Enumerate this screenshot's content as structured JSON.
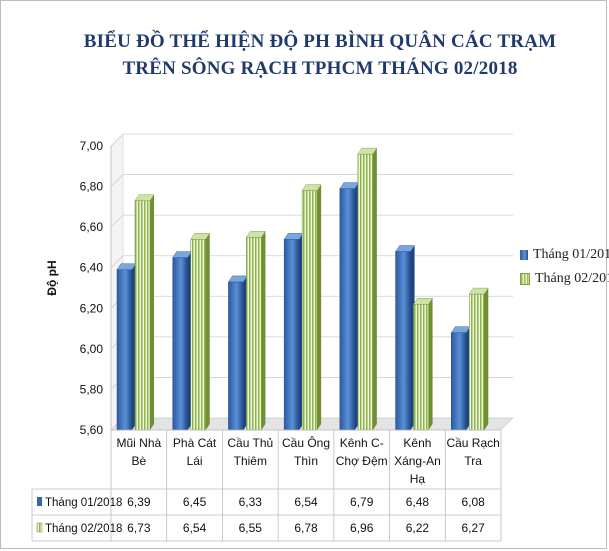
{
  "chart_data": {
    "type": "bar",
    "title_lines": [
      "BIỂU ĐỒ THỂ HIỆN ĐỘ PH BÌNH QUÂN CÁC TRẠM",
      "TRÊN SÔNG RẠCH TPHCM THÁNG 02/2018"
    ],
    "ylabel": "Độ pH",
    "ylim": [
      5.6,
      7.0
    ],
    "yticks": [
      "5,60",
      "5,80",
      "6,00",
      "6,20",
      "6,40",
      "6,60",
      "6,80",
      "7,00"
    ],
    "categories": [
      [
        "Mũi Nhà",
        "Bè"
      ],
      [
        "Phà Cát",
        "Lái"
      ],
      [
        "Cầu Thủ",
        "Thiêm"
      ],
      [
        "Cầu Ông",
        "Thìn"
      ],
      [
        "Kênh C-",
        "Chợ Đệm"
      ],
      [
        "Kênh",
        "Xáng-An",
        "Hạ"
      ],
      [
        "Cầu Rạch",
        "Tra"
      ]
    ],
    "series": [
      {
        "name": "Tháng 01/2018",
        "values": [
          6.39,
          6.45,
          6.33,
          6.54,
          6.79,
          6.48,
          6.08
        ],
        "labels": [
          "6,39",
          "6,45",
          "6,33",
          "6,54",
          "6,79",
          "6,48",
          "6,08"
        ],
        "color": "#3366b3"
      },
      {
        "name": "Tháng 02/2018",
        "values": [
          6.73,
          6.54,
          6.55,
          6.78,
          6.96,
          6.22,
          6.27
        ],
        "labels": [
          "6,73",
          "6,54",
          "6,55",
          "6,78",
          "6,96",
          "6,22",
          "6,27"
        ],
        "color": "#9bbf55"
      }
    ],
    "legend": "right",
    "grid": true,
    "data_table": true
  }
}
